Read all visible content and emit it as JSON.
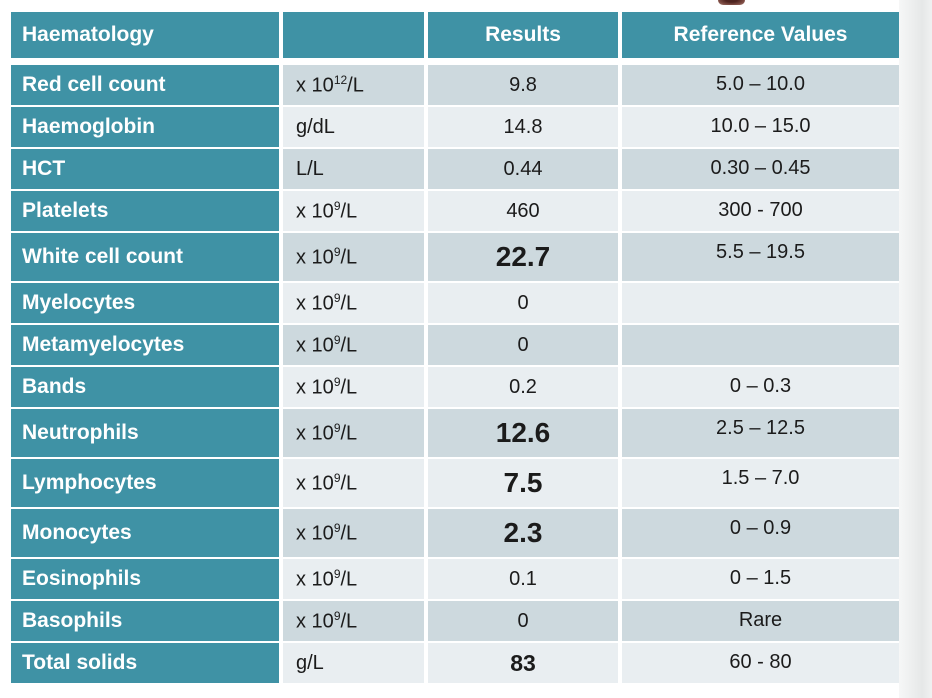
{
  "colors": {
    "teal": "#3F92A5",
    "row_dark": "#CDD9DE",
    "row_light": "#E9EEF1",
    "header_text": "#FFFFFF",
    "body_text": "#1B1B1B",
    "title_fragment": "#6B3630"
  },
  "table": {
    "header": {
      "test_label": "Haematology",
      "units_label": "",
      "results_label": "Results",
      "reference_label": "Reference Values"
    },
    "rows": [
      {
        "name": "Red cell count",
        "unit_base": "x 10",
        "unit_sup": "12",
        "unit_rest": "/L",
        "result": "9.8",
        "result_style": "normal",
        "reference": "5.0 – 10.0"
      },
      {
        "name": "Haemoglobin",
        "unit_base": "g/dL",
        "unit_sup": "",
        "unit_rest": "",
        "result": "14.8",
        "result_style": "normal",
        "reference": "10.0 – 15.0"
      },
      {
        "name": "HCT",
        "unit_base": "L/L",
        "unit_sup": "",
        "unit_rest": "",
        "result": "0.44",
        "result_style": "normal",
        "reference": "0.30 – 0.45"
      },
      {
        "name": "Platelets",
        "unit_base": "x 10",
        "unit_sup": "9",
        "unit_rest": "/L",
        "result": "460",
        "result_style": "normal",
        "reference": "300 - 700"
      },
      {
        "name": "White cell count",
        "unit_base": "x 10",
        "unit_sup": "9",
        "unit_rest": "/L",
        "result": "22.7",
        "result_style": "bold_large",
        "reference": "5.5 – 19.5"
      },
      {
        "name": "Myelocytes",
        "unit_base": "x 10",
        "unit_sup": "9",
        "unit_rest": "/L",
        "result": "0",
        "result_style": "normal",
        "reference": ""
      },
      {
        "name": "Metamyelocytes",
        "unit_base": "x 10",
        "unit_sup": "9",
        "unit_rest": "/L",
        "result": "0",
        "result_style": "normal",
        "reference": ""
      },
      {
        "name": "Bands",
        "unit_base": "x 10",
        "unit_sup": "9",
        "unit_rest": "/L",
        "result": "0.2",
        "result_style": "normal",
        "reference": "0 – 0.3"
      },
      {
        "name": "Neutrophils",
        "unit_base": "x 10",
        "unit_sup": "9",
        "unit_rest": "/L",
        "result": "12.6",
        "result_style": "bold_large",
        "reference": "2.5 – 12.5"
      },
      {
        "name": "Lymphocytes",
        "unit_base": "x 10",
        "unit_sup": "9",
        "unit_rest": "/L",
        "result": "7.5",
        "result_style": "bold_large",
        "reference": "1.5 – 7.0"
      },
      {
        "name": "Monocytes",
        "unit_base": "x 10",
        "unit_sup": "9",
        "unit_rest": "/L",
        "result": "2.3",
        "result_style": "bold_large",
        "reference": "0 – 0.9"
      },
      {
        "name": "Eosinophils",
        "unit_base": "x 10",
        "unit_sup": "9",
        "unit_rest": "/L",
        "result": "0.1",
        "result_style": "normal",
        "reference": "0 – 1.5"
      },
      {
        "name": "Basophils",
        "unit_base": "x 10",
        "unit_sup": "9",
        "unit_rest": "/L",
        "result": "0",
        "result_style": "normal",
        "reference": "Rare"
      },
      {
        "name": "Total solids",
        "unit_base": "g/L",
        "unit_sup": "",
        "unit_rest": "",
        "result": "83",
        "result_style": "bold",
        "reference": "60 - 80"
      }
    ]
  }
}
